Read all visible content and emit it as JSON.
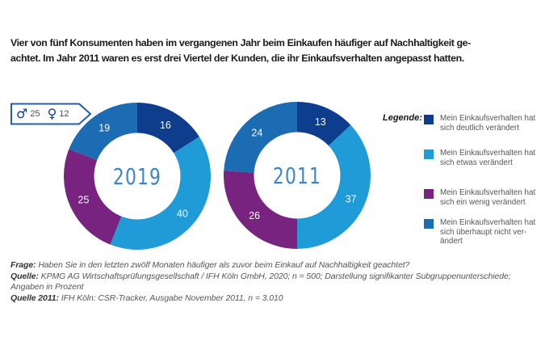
{
  "header": {
    "text": "Vier von fünf Konsumenten haben im vergangenen Jahr beim Einkaufen häufiger auf Nachhaltigkeit ge-\nachtet. Im Jahr 2011 waren es erst drei Viertel der Kunden, die ihr Einkaufsverhalten angepasst hatten."
  },
  "badge": {
    "male_icon": "♂",
    "male_value": "25",
    "female_icon": "♀",
    "female_value": "12"
  },
  "chart_data": {
    "type": "donut",
    "unit": "percent",
    "title": "Vier von fünf Konsumenten haben im vergangenen Jahr beim Einkaufen häufiger auf Nachhaltigkeit geachtet. Im Jahr 2011 waren es erst drei Viertel der Kunden, die ihr Einkaufsverhalten angepasst hatten.",
    "gender_callout": {
      "male": 25,
      "female": 12
    },
    "segment_names": [
      "deutlich-veraendert",
      "etwas-veraendert",
      "ein-wenig-veraendert",
      "ueberhaupt-nicht-veraendert"
    ],
    "segment_colors": [
      "#0d3d8c",
      "#1f9bd8",
      "#77237f",
      "#1c6cb3"
    ],
    "charts": [
      {
        "center_label": "2019",
        "values": [
          16,
          40,
          25,
          19
        ]
      },
      {
        "center_label": "2011",
        "values": [
          13,
          37,
          26,
          24
        ]
      }
    ],
    "legend_title": "Legende:",
    "legend_position": "right",
    "legend": [
      {
        "color": "#0d3d8c",
        "label": "Mein Einkaufsverhalten hat\nsich deutlich verändert"
      },
      {
        "color": "#1f9bd8",
        "label": "Mein Einkaufsverhalten hat\nsich etwas verändert"
      },
      {
        "color": "#77237f",
        "label": "Mein Einkaufsverhalten hat\nsich ein wenig verändert"
      },
      {
        "color": "#1c6cb3",
        "label": "Mein Einkaufsverhalten hat\nsich überhaupt nicht ver-\nändert"
      }
    ]
  },
  "footer": {
    "lines": [
      {
        "label": "Frage:",
        "text": " Haben Sie in den letzten zwölf Monaten häufiger als zuvor beim Einkauf auf Nachhaltigkeit geachtet?"
      },
      {
        "label": "Quelle:",
        "text": " KPMG AG Wirtschaftsprüfungsgesellschaft / IFH Köln GmbH, 2020; n = 500; Darstellung signifikanter Subgruppenunterschiede;"
      },
      {
        "label": "",
        "text": "Angaben in Prozent"
      },
      {
        "label": "Quelle 2011:",
        "text": " IFH Köln: CSR-Tracker, Ausgabe November 2011, n = 3.010"
      }
    ]
  },
  "colors": {
    "navy": "#0d3d8c",
    "light_blue": "#1f9bd8",
    "purple": "#77237f",
    "medium_blue": "#1c6cb3",
    "year_label": "#3f86c0",
    "badge_border": "#2a5ca5",
    "headline_text": "#1b1b1b",
    "body_text": "#56565a"
  }
}
